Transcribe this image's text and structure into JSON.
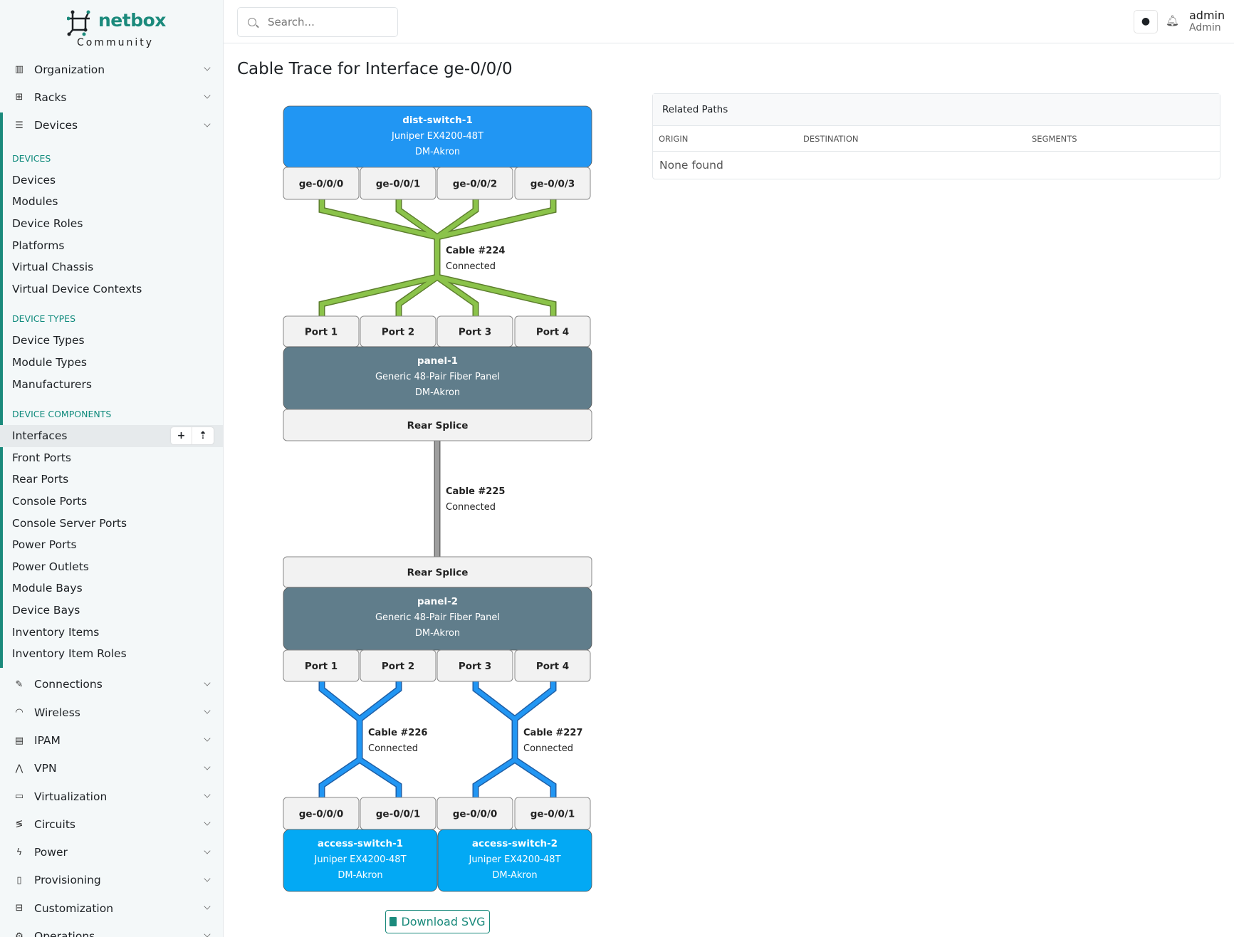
{
  "brand": {
    "name": "netbox",
    "edition": "Community",
    "color": "#1b8a7c"
  },
  "search": {
    "placeholder": "Search..."
  },
  "user": {
    "name": "admin",
    "role": "Admin"
  },
  "sidebar": {
    "top_menus": [
      {
        "label": "Organization",
        "icon": "building-icon"
      },
      {
        "label": "Racks",
        "icon": "rack-icon"
      },
      {
        "label": "Devices",
        "icon": "server-icon"
      }
    ],
    "sections": [
      {
        "title": "DEVICES",
        "items": [
          "Devices",
          "Modules",
          "Device Roles",
          "Platforms",
          "Virtual Chassis",
          "Virtual Device Contexts"
        ]
      },
      {
        "title": "DEVICE TYPES",
        "items": [
          "Device Types",
          "Module Types",
          "Manufacturers"
        ]
      },
      {
        "title": "DEVICE COMPONENTS",
        "items": [
          "Interfaces",
          "Front Ports",
          "Rear Ports",
          "Console Ports",
          "Console Server Ports",
          "Power Ports",
          "Power Outlets",
          "Module Bays",
          "Device Bays",
          "Inventory Items",
          "Inventory Item Roles"
        ]
      }
    ],
    "active_item": "Interfaces",
    "bottom_menus": [
      {
        "label": "Connections",
        "icon": "plug-icon"
      },
      {
        "label": "Wireless",
        "icon": "wifi-icon"
      },
      {
        "label": "IPAM",
        "icon": "ip-icon"
      },
      {
        "label": "VPN",
        "icon": "vpn-icon"
      },
      {
        "label": "Virtualization",
        "icon": "monitor-icon"
      },
      {
        "label": "Circuits",
        "icon": "circuit-icon"
      },
      {
        "label": "Power",
        "icon": "bolt-icon"
      },
      {
        "label": "Provisioning",
        "icon": "file-icon"
      },
      {
        "label": "Customization",
        "icon": "toolbox-icon"
      },
      {
        "label": "Operations",
        "icon": "cogs-icon"
      }
    ]
  },
  "page": {
    "title": "Cable Trace for Interface ge-0/0/0",
    "download_label": "Download SVG"
  },
  "related_paths": {
    "title": "Related Paths",
    "columns": [
      "ORIGIN",
      "DESTINATION",
      "SEGMENTS"
    ],
    "empty": "None found"
  },
  "trace": {
    "colors": {
      "device": "#2196f3",
      "access": "#03a9f4",
      "panel": "#607d8b",
      "port": "#f2f2f2",
      "cable_green": "#8bc34a",
      "cable_blue": "#2196f3",
      "cable_gray": "#9e9e9e"
    },
    "dist_switch": {
      "name": "dist-switch-1",
      "type": "Juniper EX4200-48T",
      "site": "DM-Akron",
      "ports": [
        "ge-0/0/0",
        "ge-0/0/1",
        "ge-0/0/2",
        "ge-0/0/3"
      ]
    },
    "cable1": {
      "label": "Cable #224",
      "status": "Connected"
    },
    "panel1": {
      "name": "panel-1",
      "type": "Generic 48-Pair Fiber Panel",
      "site": "DM-Akron",
      "front_ports": [
        "Port 1",
        "Port 2",
        "Port 3",
        "Port 4"
      ],
      "rear": "Rear Splice"
    },
    "cable2": {
      "label": "Cable #225",
      "status": "Connected"
    },
    "panel2": {
      "name": "panel-2",
      "type": "Generic 48-Pair Fiber Panel",
      "site": "DM-Akron",
      "front_ports": [
        "Port 1",
        "Port 2",
        "Port 3",
        "Port 4"
      ],
      "rear": "Rear Splice"
    },
    "cable3": {
      "label": "Cable #226",
      "status": "Connected"
    },
    "cable4": {
      "label": "Cable #227",
      "status": "Connected"
    },
    "access1": {
      "name": "access-switch-1",
      "type": "Juniper EX4200-48T",
      "site": "DM-Akron",
      "ports": [
        "ge-0/0/0",
        "ge-0/0/1"
      ]
    },
    "access2": {
      "name": "access-switch-2",
      "type": "Juniper EX4200-48T",
      "site": "DM-Akron",
      "ports": [
        "ge-0/0/0",
        "ge-0/0/1"
      ]
    }
  }
}
